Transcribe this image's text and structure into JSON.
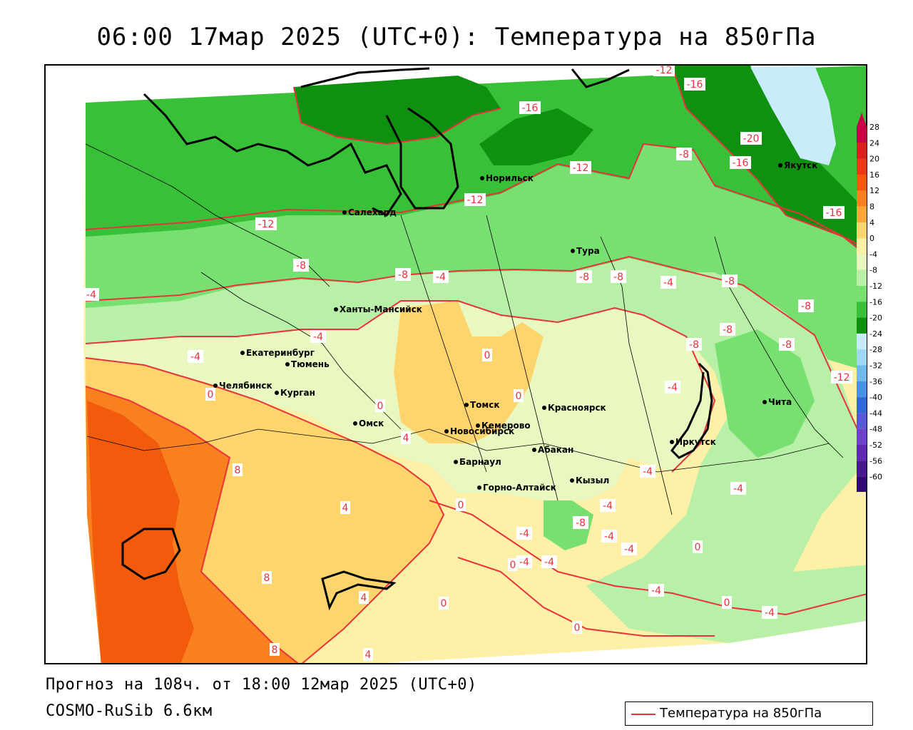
{
  "header": {
    "title": "06:00 17мар 2025 (UTC+0): Температура на 850гПа"
  },
  "footer": {
    "forecast": "Прогноз на 108ч. от 18:00 12мар 2025 (UTC+0)",
    "model": "COSMO-RuSib 6.6км"
  },
  "legend": {
    "label": "Температура на 850гПа",
    "line_color": "#e8323c"
  },
  "colorbar": {
    "labels": [
      "28",
      "24",
      "20",
      "16",
      "12",
      "8",
      "4",
      "0",
      "-4",
      "-8",
      "-12",
      "-16",
      "-20",
      "-24",
      "-28",
      "-32",
      "-36",
      "-40",
      "-44",
      "-48",
      "-52",
      "-56",
      "-60"
    ],
    "colors": [
      "#c8004a",
      "#d8201e",
      "#e83a14",
      "#f25a0c",
      "#f8801e",
      "#fca838",
      "#fed46c",
      "#fff0a8",
      "#e8f8c0",
      "#b8f0a8",
      "#78e070",
      "#38c038",
      "#109010",
      "#c8ecfa",
      "#a0d8f8",
      "#70b8f0",
      "#4890e8",
      "#3068d8",
      "#5858d8",
      "#7040d0",
      "#6028b8",
      "#481890",
      "#300878"
    ]
  },
  "cities": [
    {
      "name": "Норильск"
    },
    {
      "name": "Якутск"
    },
    {
      "name": "Салехард"
    },
    {
      "name": "Тура"
    },
    {
      "name": "Ханты-Мансийск"
    },
    {
      "name": "Екатеринбург"
    },
    {
      "name": "Тюмень"
    },
    {
      "name": "Челябинск"
    },
    {
      "name": "Курган"
    },
    {
      "name": "Омск"
    },
    {
      "name": "Новосибирск"
    },
    {
      "name": "Томск"
    },
    {
      "name": "Кемерово"
    },
    {
      "name": "Красноярск"
    },
    {
      "name": "Барнаул"
    },
    {
      "name": "Абакан"
    },
    {
      "name": "Горно-Алтайск"
    },
    {
      "name": "Кызыл"
    },
    {
      "name": "Иркутск"
    },
    {
      "name": "Чита"
    }
  ],
  "isotherm_labels": [
    "-12",
    "-16",
    "-16",
    "-12",
    "-8",
    "-20",
    "-16",
    "-16",
    "-12",
    "-12",
    "-8",
    "-8",
    "-4",
    "-8",
    "-8",
    "-8",
    "-4",
    "-8",
    "-8",
    "-4",
    "-8",
    "-8",
    "-4",
    "-4",
    "0",
    "-4",
    "0",
    "0",
    "-12",
    "0",
    "4",
    "8",
    "-4",
    "-4",
    "-4",
    "-8",
    "-4",
    "-4",
    "-4",
    "-4",
    "-4",
    "0",
    "0",
    "0",
    "0",
    "-4",
    "-4",
    "4",
    "8",
    "4",
    "0",
    "8",
    "4",
    "0"
  ]
}
